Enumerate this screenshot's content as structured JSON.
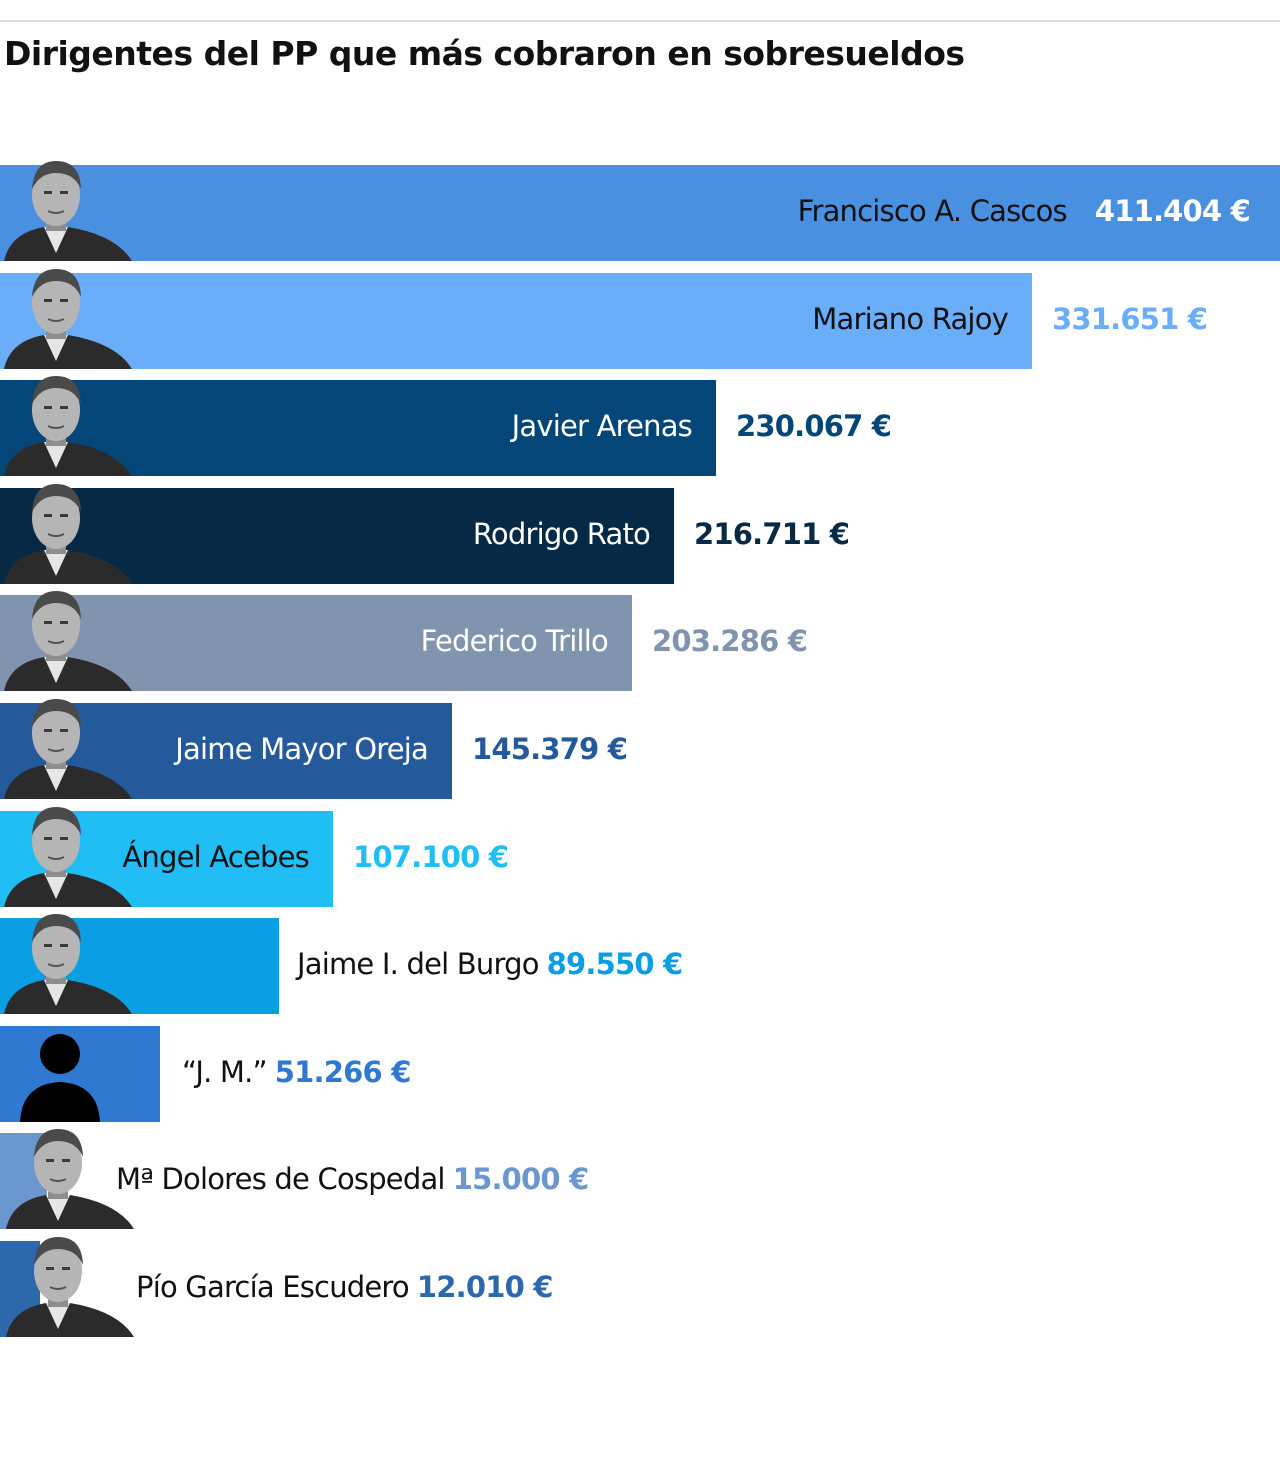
{
  "chart_data": {
    "type": "bar",
    "orientation": "horizontal",
    "title": "Dirigentes del PP que más cobraron en sobresueldos",
    "categories": [
      "Francisco A. Cascos",
      "Mariano Rajoy",
      "Javier Arenas",
      "Rodrigo Rato",
      "Federico Trillo",
      "Jaime Mayor Oreja",
      "Ángel Acebes",
      "Jaime I. del Burgo",
      "“J. M.”",
      "Mª Dolores de Cospedal",
      "Pío García Escudero"
    ],
    "values": [
      411404,
      331651,
      230067,
      216711,
      203286,
      145379,
      107100,
      89550,
      51266,
      15000,
      12010
    ],
    "value_labels": [
      "411.404 €",
      "331.651 €",
      "230.067 €",
      "216.711 €",
      "203.286 €",
      "145.379 €",
      "107.100 €",
      "89.550 €",
      "51.266 €",
      "15.000 €",
      "12.010 €"
    ],
    "colors": [
      "#4a90e0",
      "#6aaefa",
      "#044677",
      "#062a46",
      "#8094b0",
      "#245a9c",
      "#21bdf5",
      "#0b9ee2",
      "#2f79d0",
      "#6a97ce",
      "#2d68ac"
    ],
    "portraits": [
      "person-photo",
      "person-photo",
      "person-photo",
      "person-photo",
      "person-photo",
      "person-photo",
      "person-photo",
      "person-photo",
      "person-silhouette-icon",
      "person-photo",
      "person-photo"
    ],
    "ylim": [
      0,
      411404
    ],
    "grid": false,
    "legend": "none"
  }
}
